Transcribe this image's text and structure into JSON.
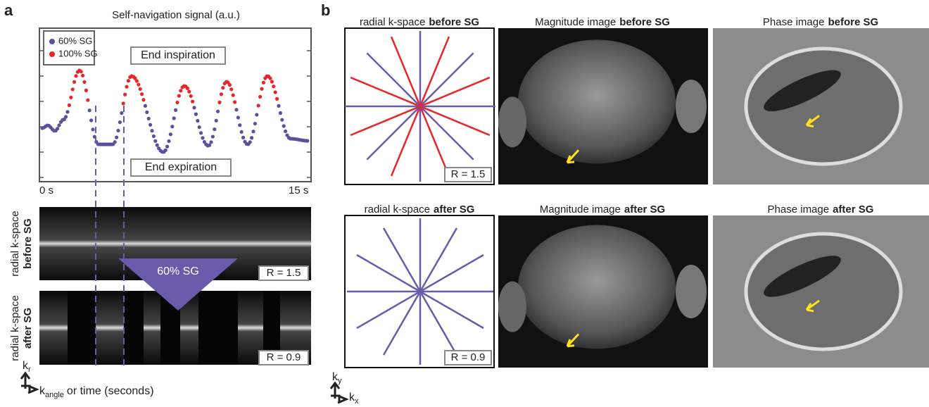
{
  "panel_a": {
    "label": "a",
    "title": "Self-navigation signal (a.u.)",
    "legend": [
      "60% SG",
      "100% SG"
    ],
    "annotations": [
      "End inspiration",
      "End expiration"
    ],
    "time_start": "0 s",
    "time_end": "15 s",
    "strip_before": {
      "text": "radial k-space",
      "bold": "before SG",
      "ratio": "R = 1.5"
    },
    "strip_after": {
      "text": "radial k-space",
      "bold": "after SG",
      "ratio": "R = 0.9"
    },
    "arrow_label": "60% SG",
    "axis_vertical": {
      "symbol": "k",
      "sub": "r"
    },
    "axis_horizontal": {
      "symbol": "k",
      "sub": "angle",
      "rest": "or time (seconds)"
    }
  },
  "panel_b": {
    "label": "b",
    "rows": [
      {
        "kspace": {
          "text": "radial k-space",
          "bold": "before SG"
        },
        "magnitude": {
          "text": "Magnitude image",
          "bold": "before SG"
        },
        "phase": {
          "text": "Phase image",
          "bold": "before SG"
        },
        "ratio": "R = 1.5"
      },
      {
        "kspace": {
          "text": "radial k-space",
          "bold": "after SG"
        },
        "magnitude": {
          "text": "Magnitude image",
          "bold": "after SG"
        },
        "phase": {
          "text": "Phase image",
          "bold": "after SG"
        },
        "ratio": "R = 0.9"
      }
    ],
    "axis_vertical": {
      "symbol": "k",
      "sub": "y"
    },
    "axis_horizontal": {
      "symbol": "k",
      "sub": "x"
    }
  }
}
